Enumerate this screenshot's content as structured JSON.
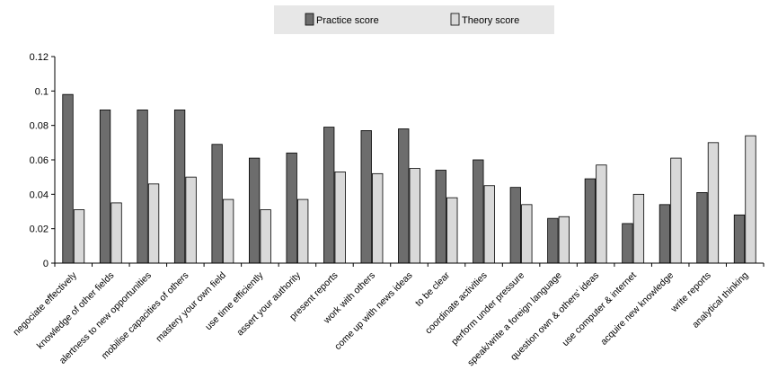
{
  "chart_data": {
    "type": "bar",
    "title": "",
    "xlabel": "",
    "ylabel": "",
    "ylim": [
      0,
      0.12
    ],
    "yticks": [
      "0",
      "0.02",
      "0.04",
      "0.06",
      "0.08",
      "0.1",
      "0.12"
    ],
    "grid": false,
    "legend_position": "top-center",
    "categories": [
      "negociate effectively",
      "knowledge of other fields",
      "alertness to new opportunities",
      "mobilise capacities of others",
      "mastery your own field",
      "use time efficiently",
      "assert your authority",
      "present reports",
      "work with others",
      "come up with news ideas",
      "to be clear",
      "coordinate activities",
      "perform under pressure",
      "speak/write a foreign language",
      "question own & others' ideas",
      "use computer & internet",
      "acquire new knowledge",
      "write reports",
      "analytical thinking"
    ],
    "series": [
      {
        "name": "Practice score",
        "color": "#6d6d6d",
        "values": [
          0.098,
          0.089,
          0.089,
          0.089,
          0.069,
          0.061,
          0.064,
          0.079,
          0.077,
          0.078,
          0.054,
          0.06,
          0.044,
          0.026,
          0.049,
          0.023,
          0.034,
          0.041,
          0.028
        ]
      },
      {
        "name": "Theory score",
        "color": "#d9d9d9",
        "values": [
          0.031,
          0.035,
          0.046,
          0.05,
          0.037,
          0.031,
          0.037,
          0.053,
          0.052,
          0.055,
          0.038,
          0.045,
          0.034,
          0.027,
          0.057,
          0.04,
          0.061,
          0.07,
          0.074
        ]
      }
    ]
  }
}
